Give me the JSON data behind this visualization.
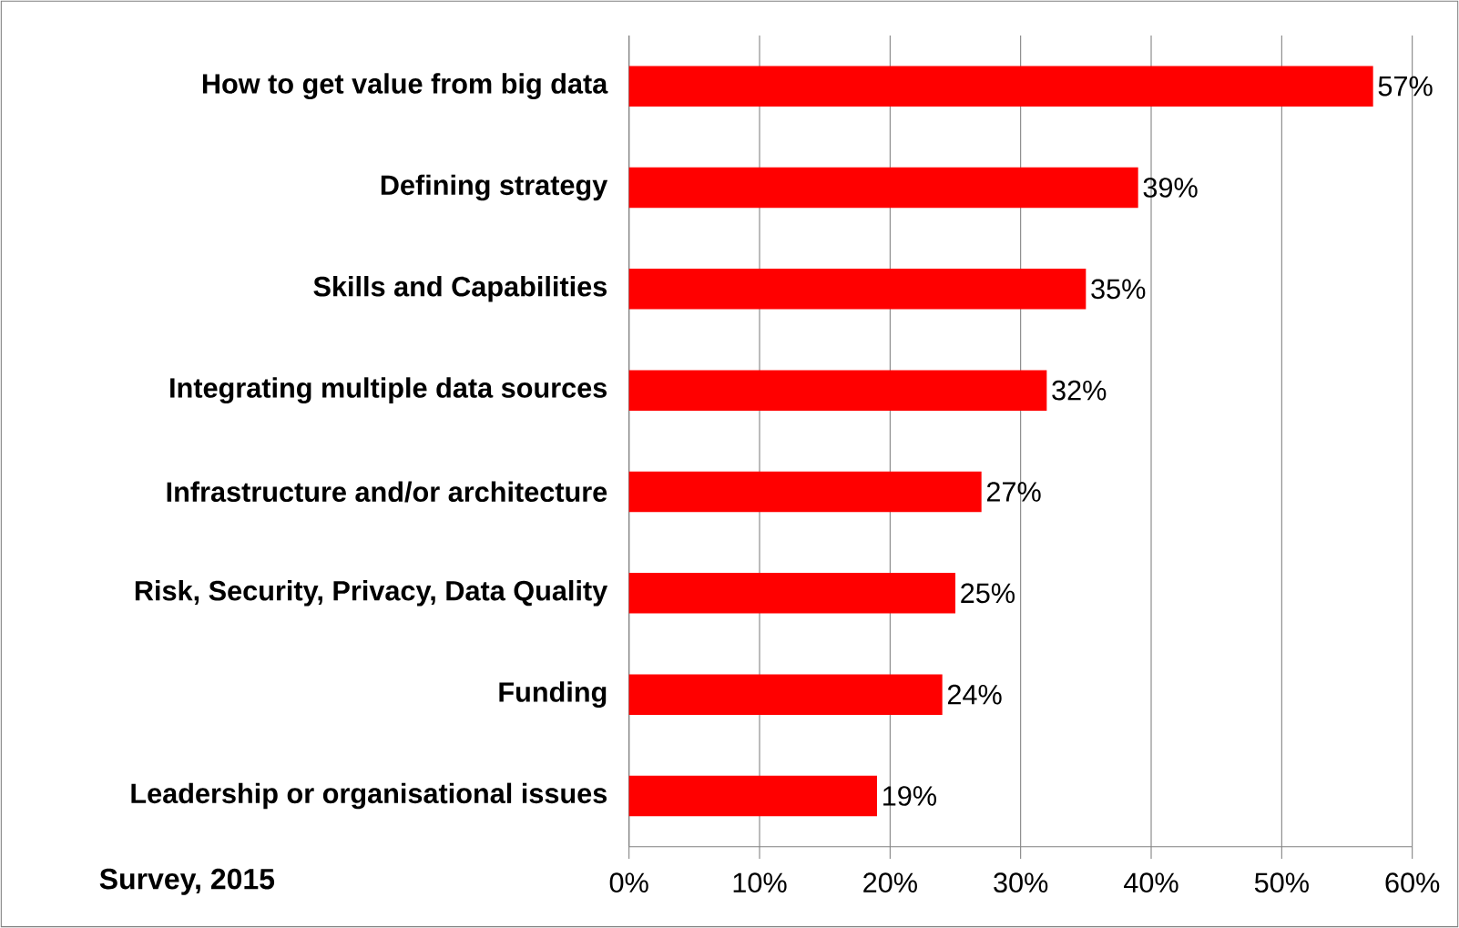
{
  "chart_data": {
    "type": "bar",
    "orientation": "horizontal",
    "color": "#ff0000",
    "categories": [
      "How to get value from big data",
      "Defining strategy",
      "Skills and Capabilities",
      "Integrating multiple data sources",
      "Infrastructure and/or architecture",
      "Risk, Security, Privacy, Data Quality",
      "Funding",
      "Leadership or organisational issues"
    ],
    "values": [
      57,
      39,
      35,
      32,
      27,
      25,
      24,
      19
    ],
    "value_labels": [
      "57%",
      "39%",
      "35%",
      "32%",
      "27%",
      "25%",
      "24%",
      "19%"
    ],
    "xlim": [
      0,
      60
    ],
    "xticks": [
      {
        "value": 0,
        "label": "0%"
      },
      {
        "value": 10,
        "label": "10%"
      },
      {
        "value": 20,
        "label": "20%"
      },
      {
        "value": 30,
        "label": "30%"
      },
      {
        "value": 40,
        "label": "40%"
      },
      {
        "value": 50,
        "label": "50%"
      },
      {
        "value": 60,
        "label": "60%"
      }
    ],
    "grid": "x",
    "annotations": [
      "Survey, 2015"
    ]
  }
}
